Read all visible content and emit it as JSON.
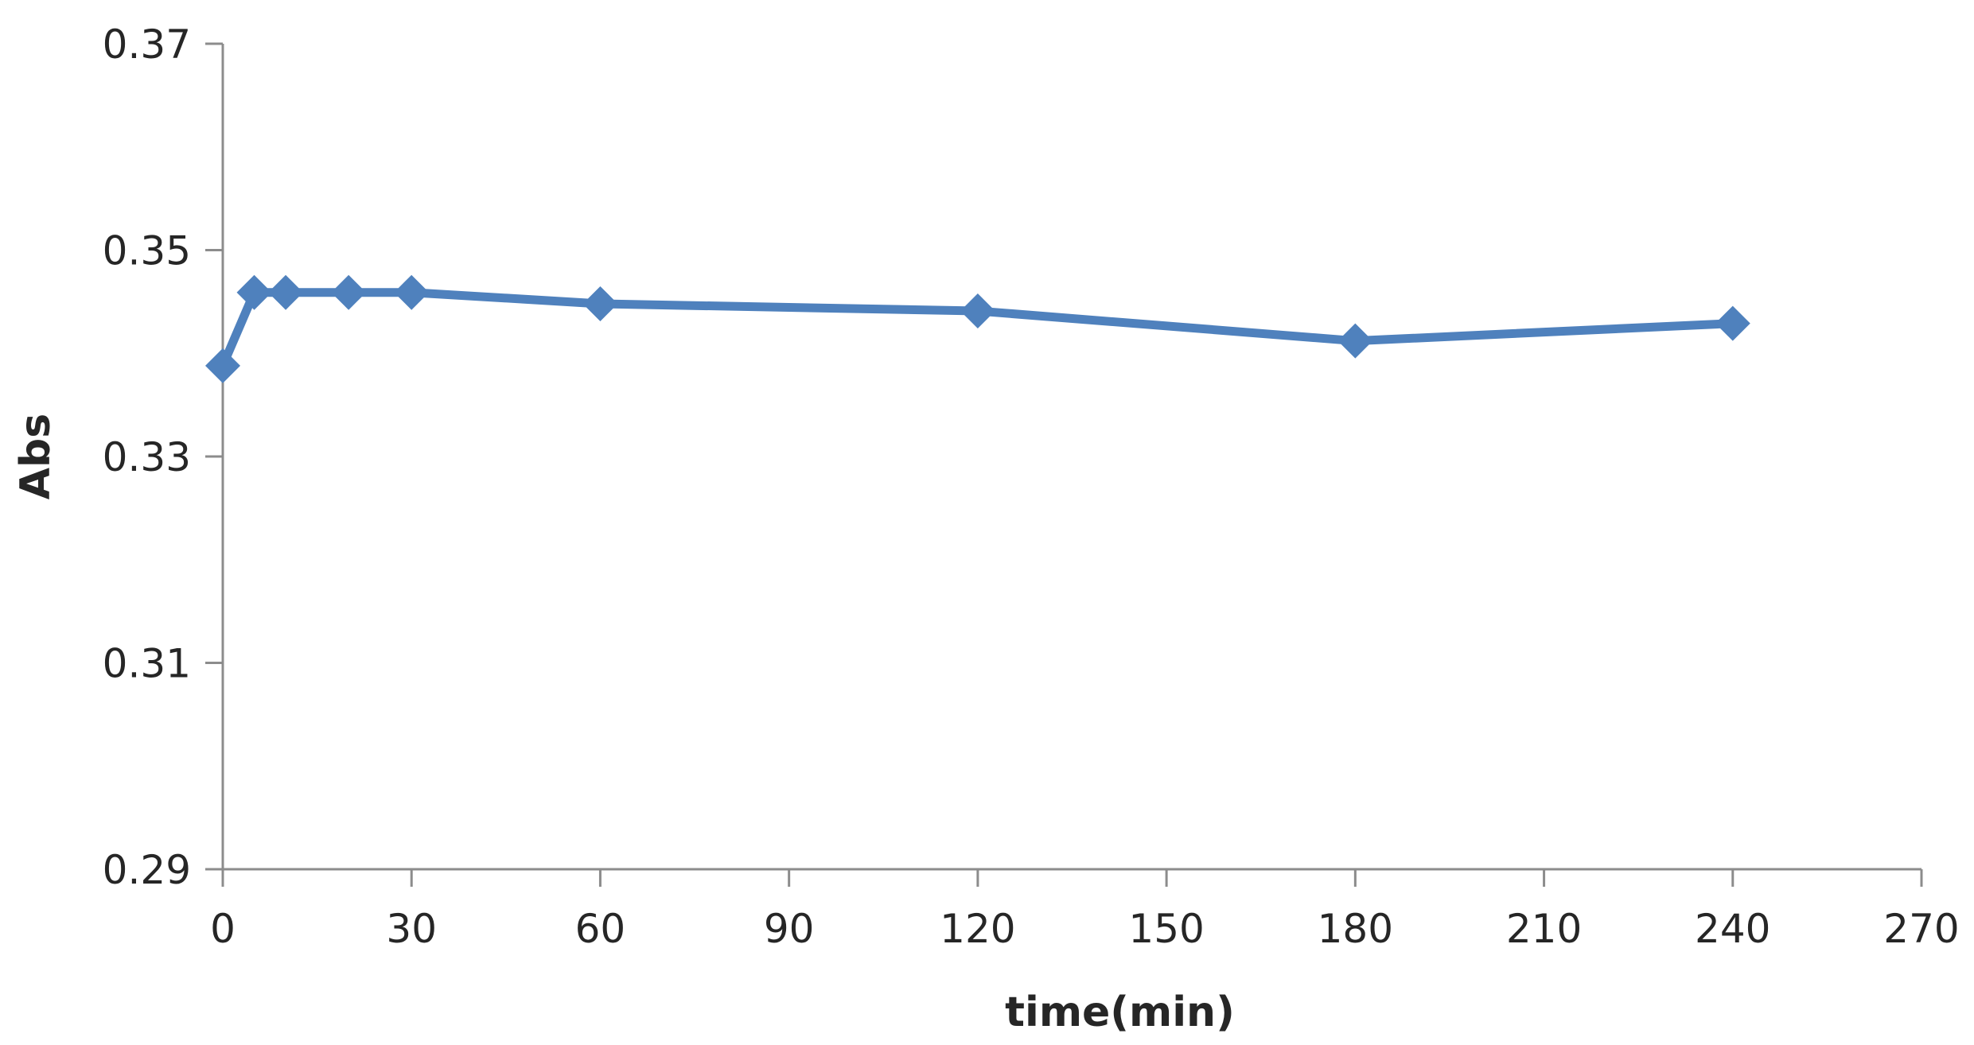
{
  "chart_data": {
    "type": "line",
    "title": "",
    "xlabel": "time(min)",
    "ylabel": "Abs",
    "xlim": [
      0,
      270
    ],
    "ylim": [
      0.29,
      0.37
    ],
    "x_ticks": [
      0,
      30,
      60,
      90,
      120,
      150,
      180,
      210,
      240,
      270
    ],
    "x_tick_labels": [
      "0",
      "30",
      "60",
      "90",
      "120",
      "150",
      "180",
      "210",
      "240",
      "270"
    ],
    "y_ticks": [
      0.29,
      0.31,
      0.33,
      0.35,
      0.37
    ],
    "y_tick_labels": [
      "0.29",
      "0.31",
      "0.33",
      "0.35",
      "0.37"
    ],
    "grid": false,
    "legend": "none",
    "marker": "diamond",
    "series": [
      {
        "color": "#4f81bd",
        "x": [
          0,
          5,
          10,
          20,
          30,
          60,
          120,
          180,
          240
        ],
        "y": [
          0.3388,
          0.3459,
          0.3459,
          0.3459,
          0.3459,
          0.3448,
          0.3441,
          0.3412,
          0.3429
        ]
      }
    ]
  }
}
